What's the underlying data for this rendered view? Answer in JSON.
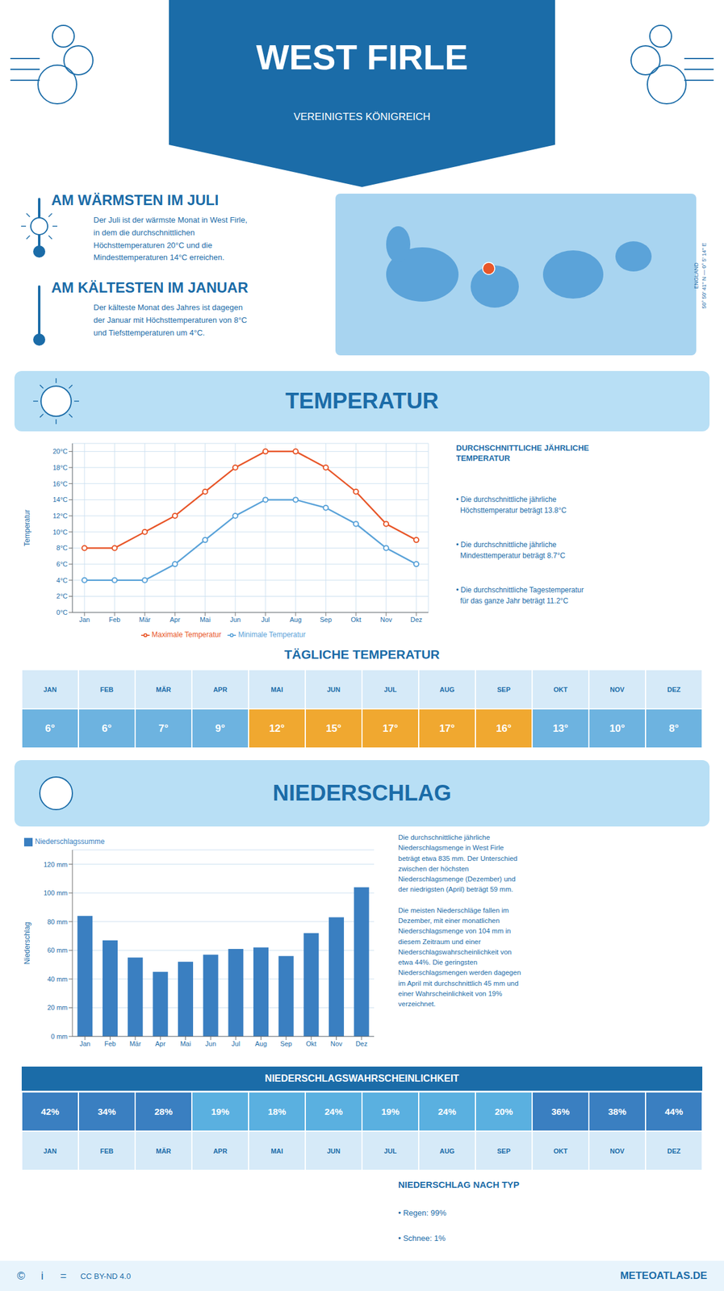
{
  "title": "WEST FIRLE",
  "subtitle": "VEREINIGTES KÖNIGREICH",
  "annotations": [
    "AM WÄRMSTEN IM JULI",
    "Der Juli ist der wärmste Monat in West Firle,\nin dem die durchschnittlichen\nHöchsttemperaturen 20°C und die\nMindesttemperaturen 14°C erreichen.",
    "AM KÄLTESTEN IM JANUAR",
    "Der kälteste Monat des Jahres ist dagegen\nder Januar mit Höchsttemperaturen von 8°C\nund Tiefsttemperaturen um 4°C.",
    "50° 50' 41'' N — 0° 5' 14'' E",
    "ENGLAND",
    "NIEDERSCHLAG NACH TYP",
    "• Regen: 99%",
    "• Schnee: 1%",
    "©",
    "i",
    "=",
    "CC BY-ND 4.0",
    "METEOATLAS.DE"
  ],
  "chart_data": [
    {
      "type": "line",
      "title": "TEMPERATUR",
      "categories": [
        "Jan",
        "Feb",
        "Mär",
        "Apr",
        "Mai",
        "Jun",
        "Jul",
        "Aug",
        "Sep",
        "Okt",
        "Nov",
        "Dez"
      ],
      "series": [
        {
          "name": "Maximale Temperatur",
          "color": "#e8572a",
          "marker": "circle",
          "values": [
            8,
            8,
            10,
            12,
            15,
            18,
            20,
            20,
            18,
            15,
            11,
            9
          ]
        },
        {
          "name": "Minimale Temperatur",
          "color": "#5ba3d9",
          "marker": "circle",
          "values": [
            4,
            4,
            4,
            6,
            9,
            12,
            14,
            14,
            13,
            11,
            8,
            6
          ]
        }
      ],
      "ylim": [
        0,
        21
      ],
      "yticks": [
        {
          "value": 0,
          "label": "0°C"
        },
        {
          "value": 2,
          "label": "2°C"
        },
        {
          "value": 4,
          "label": "4°C"
        },
        {
          "value": 6,
          "label": "6°C"
        },
        {
          "value": 8,
          "label": "8°C"
        },
        {
          "value": 10,
          "label": "10°C"
        },
        {
          "value": 12,
          "label": "12°C"
        },
        {
          "value": 14,
          "label": "14°C"
        },
        {
          "value": 16,
          "label": "16°C"
        },
        {
          "value": 18,
          "label": "18°C"
        },
        {
          "value": 20,
          "label": "20°C"
        }
      ],
      "y_label": "Temperatur",
      "grid": true,
      "legend": "bottom",
      "annotations": [
        "DURCHSCHNITTLICHE JÄHRLICHE\nTEMPERATUR",
        "• Die durchschnittliche jährliche\n  Höchsttemperatur beträgt 13.8°C",
        "• Die durchschnittliche jährliche\n  Mindesttemperatur beträgt 8.7°C",
        "• Die durchschnittliche Tagestemperatur\n  für das ganze Jahr beträgt 11.2°C"
      ]
    },
    {
      "type": "bar",
      "title": "NIEDERSCHLAG",
      "categories": [
        "Jan",
        "Feb",
        "Mär",
        "Apr",
        "Mai",
        "Jun",
        "Jul",
        "Aug",
        "Sep",
        "Okt",
        "Nov",
        "Dez"
      ],
      "series": [
        {
          "name": "Niederschlagssumme",
          "color": "#3a7fc1",
          "values": [
            84,
            67,
            55,
            45,
            52,
            57,
            61,
            62,
            56,
            72,
            83,
            104
          ]
        }
      ],
      "ylim": [
        0,
        130
      ],
      "yticks": [
        {
          "value": 0,
          "label": "0 mm"
        },
        {
          "value": 20,
          "label": "20 mm"
        },
        {
          "value": 40,
          "label": "40 mm"
        },
        {
          "value": 60,
          "label": "60 mm"
        },
        {
          "value": 80,
          "label": "80 mm"
        },
        {
          "value": 100,
          "label": "100 mm"
        },
        {
          "value": 120,
          "label": "120 mm"
        }
      ],
      "y_label": "Niederschlag",
      "grid": "y",
      "legend": "upper left",
      "annotations": [
        "Die durchschnittliche jährliche\nNiederschlagsmenge in West Firle\nbeträgt etwa 835 mm. Der Unterschied\nzwischen der höchsten\nNiederschlagsmenge (Dezember) und\nder niedrigsten (April) beträgt 59 mm.\n\nDie meisten Niederschläge fallen im\nDezember, mit einer monatlichen\nNiederschlagsmenge von 104 mm in\ndiesem Zeitraum und einer\nNiederschlagswahrscheinlichkeit von\netwa 44%. Die geringsten\nNiederschlagsmengen werden dagegen\nim April mit durchschnittlich 45 mm und\neiner Wahrscheinlichkeit von 19%\nverzeichnet."
      ]
    },
    {
      "type": "table",
      "title": "TÄGLICHE TEMPERATUR",
      "categories": [
        "JAN",
        "FEB",
        "MÄR",
        "APR",
        "MAI",
        "JUN",
        "JUL",
        "AUG",
        "SEP",
        "OKT",
        "NOV",
        "DEZ"
      ],
      "values": [
        6,
        6,
        7,
        9,
        12,
        15,
        17,
        17,
        16,
        13,
        10,
        8
      ],
      "value_labels": [
        "6°",
        "6°",
        "7°",
        "9°",
        "12°",
        "15°",
        "17°",
        "17°",
        "16°",
        "13°",
        "10°",
        "8°"
      ],
      "colors": [
        "#6db3e0",
        "#6db3e0",
        "#6db3e0",
        "#6db3e0",
        "#f0a830",
        "#f0a830",
        "#f0a830",
        "#f0a830",
        "#f0a830",
        "#6db3e0",
        "#6db3e0",
        "#6db3e0"
      ]
    },
    {
      "type": "table",
      "title": "NIEDERSCHLAGSWAHRSCHEINLICHKEIT",
      "categories": [
        "JAN",
        "FEB",
        "MÄR",
        "APR",
        "MAI",
        "JUN",
        "JUL",
        "AUG",
        "SEP",
        "OKT",
        "NOV",
        "DEZ"
      ],
      "values": [
        42,
        34,
        28,
        19,
        18,
        24,
        19,
        24,
        20,
        36,
        38,
        44
      ],
      "value_labels": [
        "42%",
        "34%",
        "28%",
        "19%",
        "18%",
        "24%",
        "19%",
        "24%",
        "20%",
        "36%",
        "38%",
        "44%"
      ],
      "colors": [
        "#3a7fc1",
        "#3a7fc1",
        "#3a7fc1",
        "#5ab0e0",
        "#5ab0e0",
        "#5ab0e0",
        "#5ab0e0",
        "#5ab0e0",
        "#5ab0e0",
        "#3a7fc1",
        "#3a7fc1",
        "#3a7fc1"
      ]
    }
  ]
}
